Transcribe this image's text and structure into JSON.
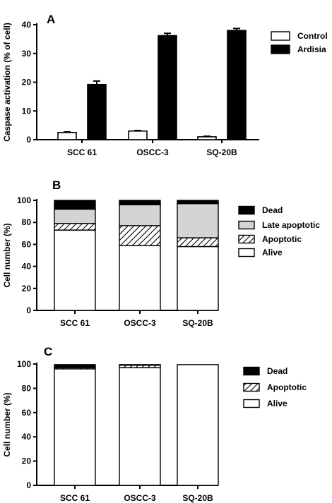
{
  "chart_data": [
    {
      "type": "bar",
      "panel": "A",
      "ylabel": "Caspase  activation  (% of cell)",
      "ylim": [
        0,
        40
      ],
      "yticks": [
        0,
        10,
        20,
        30,
        40
      ],
      "categories": [
        "SCC 61",
        "OSCC-3",
        "SQ-20B"
      ],
      "series": [
        {
          "name": "Control",
          "values": [
            2.5,
            3,
            1
          ],
          "errors": [
            0.2,
            0.2,
            0.2
          ],
          "color": "#ffffff"
        },
        {
          "name": "Ardisia",
          "values": [
            19.2,
            36.2,
            38
          ],
          "errors": [
            1.2,
            0.8,
            0.7
          ],
          "color": "#000000"
        }
      ],
      "legend": "top-right",
      "grid": false
    },
    {
      "type": "bar",
      "stacked": true,
      "panel": "B",
      "ylabel": "Cell  number  (%)",
      "ylim": [
        0,
        100
      ],
      "yticks": [
        0,
        20,
        40,
        60,
        80,
        100
      ],
      "categories": [
        "SCC 61",
        "OSCC-3",
        "SQ-20B"
      ],
      "series": [
        {
          "name": "Alive",
          "values": [
            73,
            59,
            58
          ],
          "pattern": "white"
        },
        {
          "name": "Apoptotic",
          "values": [
            6,
            18,
            8
          ],
          "pattern": "hatch"
        },
        {
          "name": "Late apoptotic",
          "values": [
            13,
            19,
            31
          ],
          "pattern": "gray"
        },
        {
          "name": "Dead",
          "values": [
            8,
            4,
            3
          ],
          "pattern": "black"
        }
      ],
      "legend": "right",
      "grid": false
    },
    {
      "type": "bar",
      "stacked": true,
      "panel": "C",
      "ylabel": "Cell  number  (%)",
      "ylim": [
        0,
        100
      ],
      "yticks": [
        0,
        20,
        40,
        60,
        80,
        100
      ],
      "categories": [
        "SCC 61",
        "OSCC-3",
        "SQ-20B"
      ],
      "series": [
        {
          "name": "Alive",
          "values": [
            96,
            97,
            99.5
          ],
          "pattern": "white"
        },
        {
          "name": "Apoptotic",
          "values": [
            1,
            2,
            0
          ],
          "pattern": "hatch"
        },
        {
          "name": "Dead",
          "values": [
            2.5,
            0.5,
            0
          ],
          "pattern": "black"
        }
      ],
      "legend": "right",
      "grid": false
    }
  ]
}
